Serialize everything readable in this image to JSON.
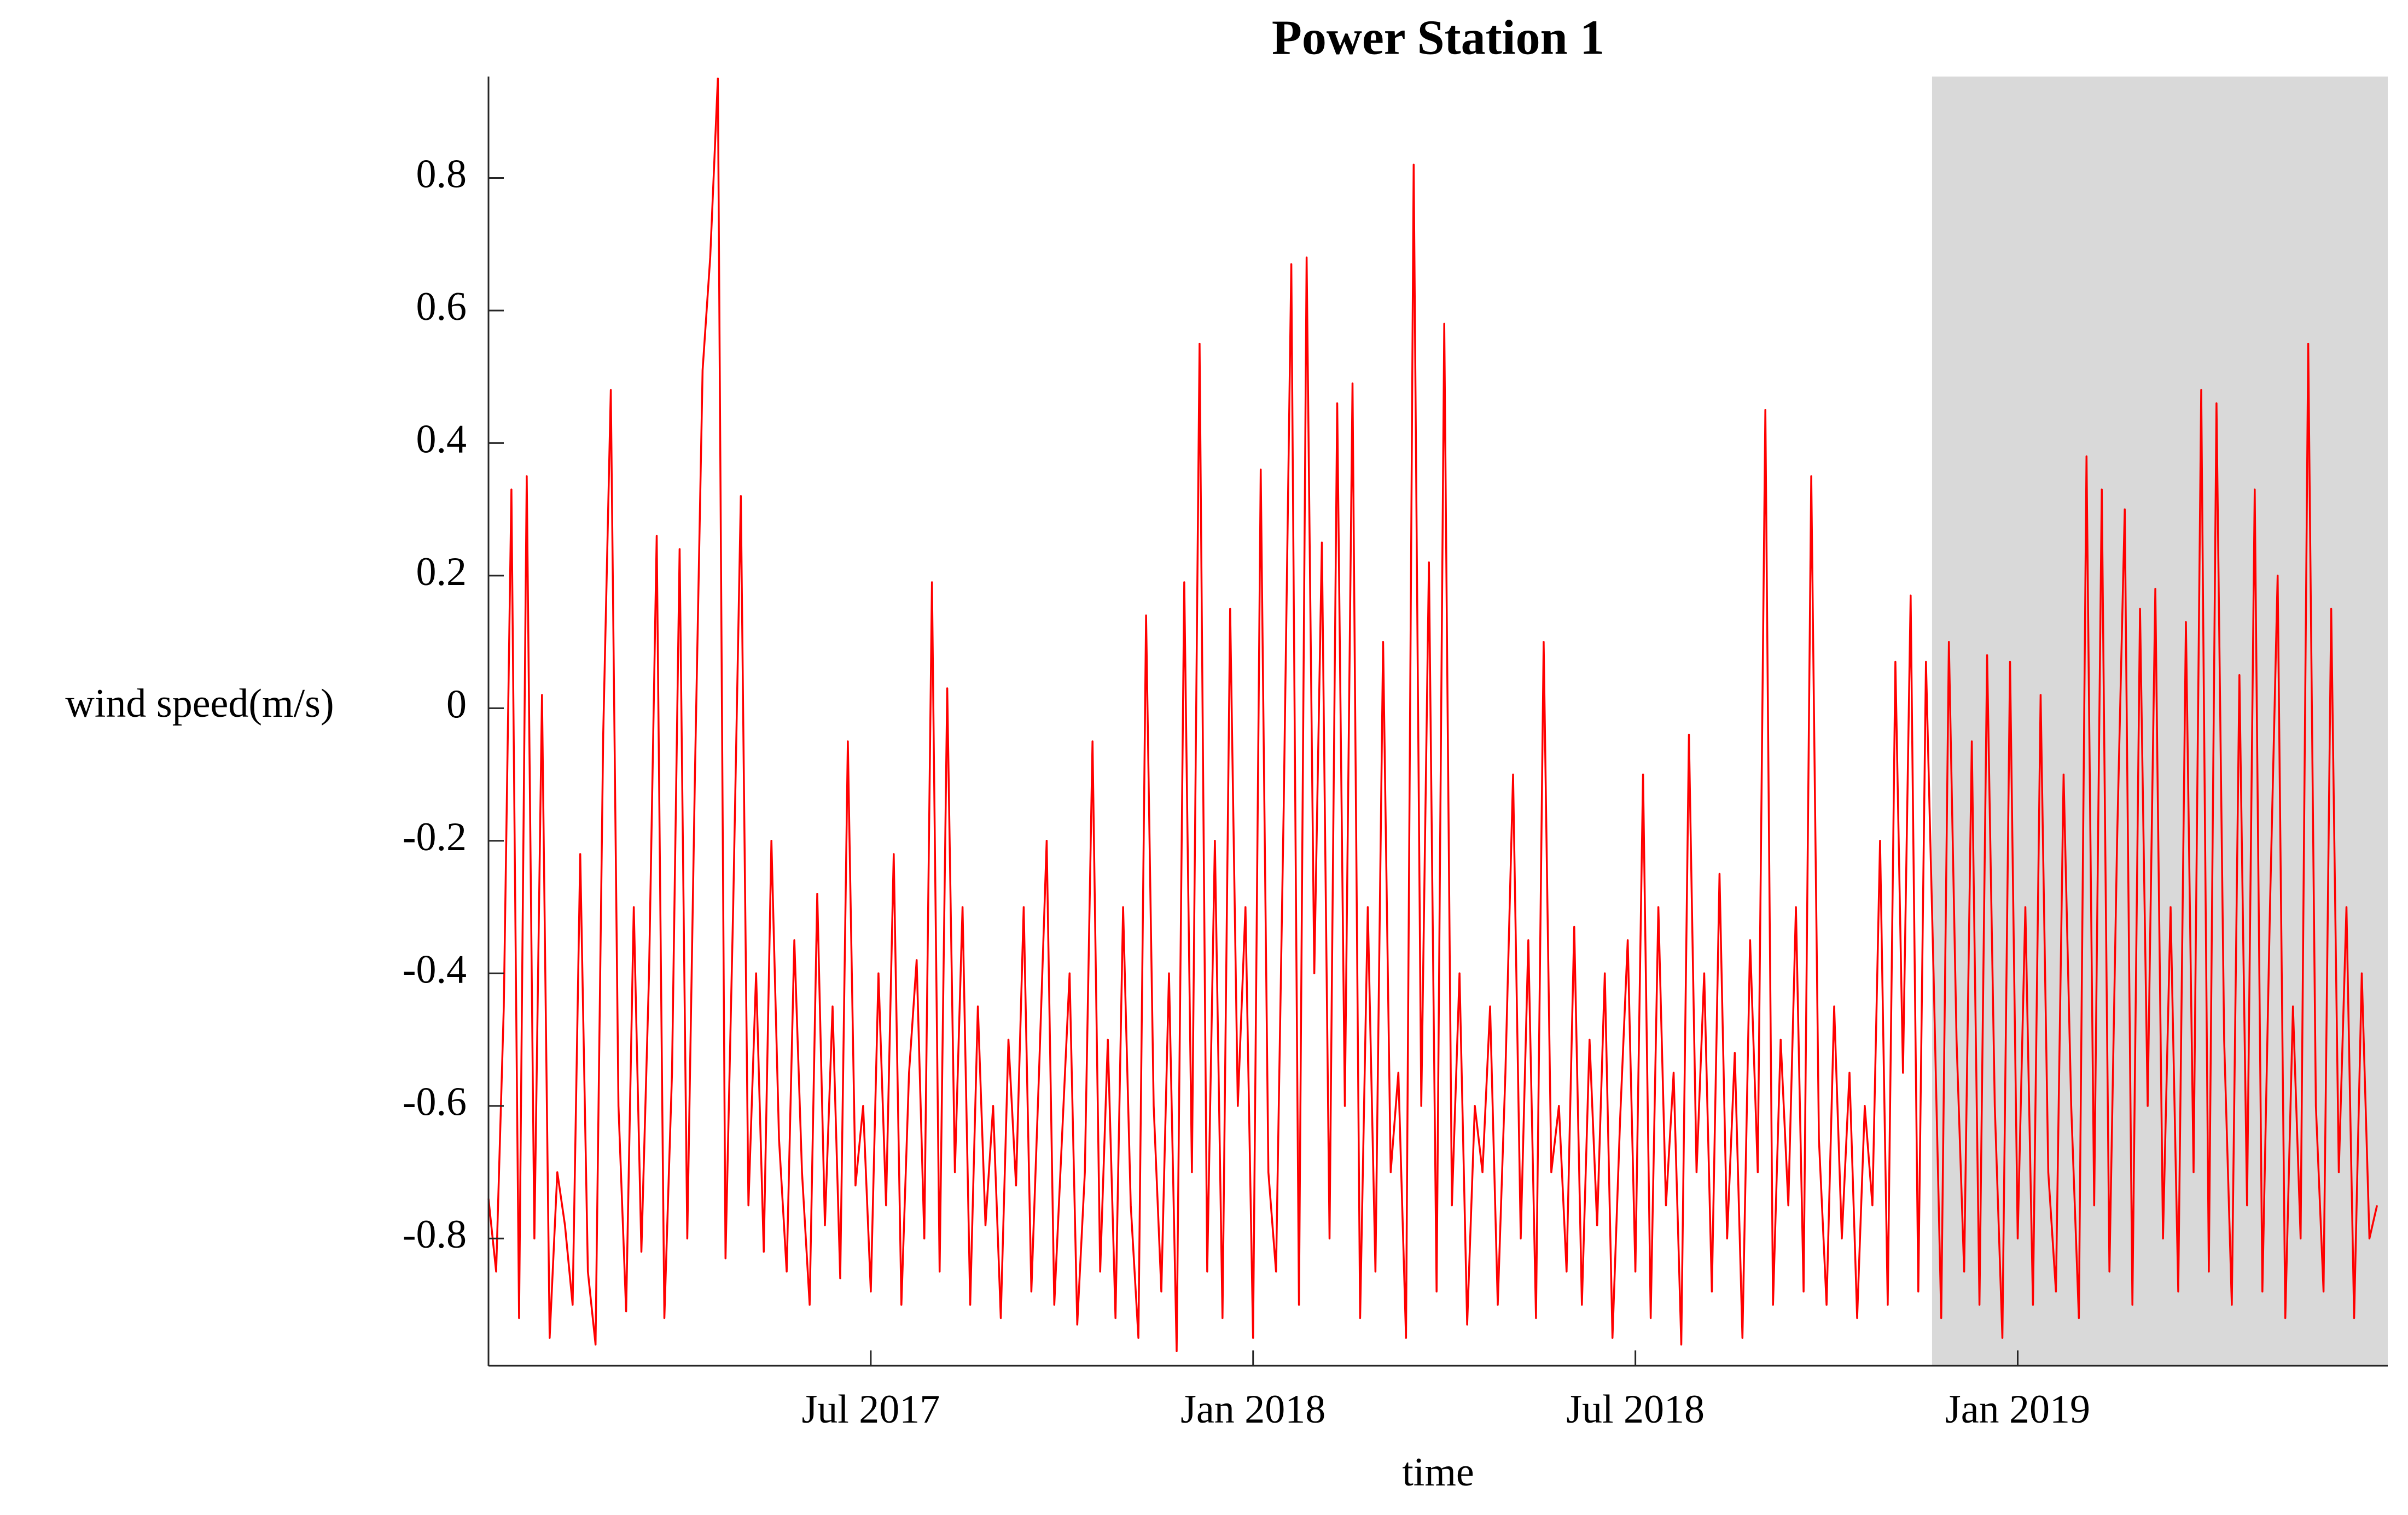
{
  "chart_data": {
    "type": "line",
    "title": "Power Station 1",
    "xlabel": "time",
    "ylabel": "wind speed(m/s)",
    "color": "#ff0000",
    "shaded_region": {
      "xlim": [
        2018.888,
        2019.484
      ],
      "color": "#d9d9d9"
    },
    "xlim": [
      2017.0,
      2019.484
    ],
    "ylim": [
      -0.992,
      0.953
    ],
    "xticks": [
      {
        "value": 2017.5,
        "label": "Jul 2017"
      },
      {
        "value": 2018.0,
        "label": "Jan 2018"
      },
      {
        "value": 2018.5,
        "label": "Jul 2018"
      },
      {
        "value": 2019.0,
        "label": "Jan 2019"
      }
    ],
    "yticks": [
      -0.8,
      -0.6,
      -0.4,
      -0.2,
      0,
      0.2,
      0.4,
      0.6,
      0.8
    ],
    "x": [
      2017.0,
      2017.01,
      2017.02,
      2017.03,
      2017.04,
      2017.05,
      2017.06,
      2017.07,
      2017.08,
      2017.09,
      2017.1,
      2017.11,
      2017.12,
      2017.13,
      2017.14,
      2017.15,
      2017.16,
      2017.17,
      2017.18,
      2017.19,
      2017.2,
      2017.21,
      2017.22,
      2017.23,
      2017.24,
      2017.25,
      2017.26,
      2017.27,
      2017.28,
      2017.29,
      2017.3,
      2017.31,
      2017.32,
      2017.33,
      2017.34,
      2017.35,
      2017.36,
      2017.37,
      2017.38,
      2017.39,
      2017.4,
      2017.41,
      2017.42,
      2017.43,
      2017.44,
      2017.45,
      2017.46,
      2017.47,
      2017.48,
      2017.49,
      2017.5,
      2017.51,
      2017.52,
      2017.53,
      2017.54,
      2017.55,
      2017.56,
      2017.57,
      2017.58,
      2017.59,
      2017.6,
      2017.61,
      2017.62,
      2017.63,
      2017.64,
      2017.65,
      2017.66,
      2017.67,
      2017.68,
      2017.69,
      2017.7,
      2017.71,
      2017.72,
      2017.73,
      2017.74,
      2017.75,
      2017.76,
      2017.77,
      2017.78,
      2017.79,
      2017.8,
      2017.81,
      2017.82,
      2017.83,
      2017.84,
      2017.85,
      2017.86,
      2017.87,
      2017.88,
      2017.89,
      2017.9,
      2017.91,
      2017.92,
      2017.93,
      2017.94,
      2017.95,
      2017.96,
      2017.97,
      2017.98,
      2017.99,
      2018.0,
      2018.01,
      2018.02,
      2018.03,
      2018.04,
      2018.05,
      2018.06,
      2018.07,
      2018.08,
      2018.09,
      2018.1,
      2018.11,
      2018.12,
      2018.13,
      2018.14,
      2018.15,
      2018.16,
      2018.17,
      2018.18,
      2018.19,
      2018.2,
      2018.21,
      2018.22,
      2018.23,
      2018.24,
      2018.25,
      2018.26,
      2018.27,
      2018.28,
      2018.29,
      2018.3,
      2018.31,
      2018.32,
      2018.33,
      2018.34,
      2018.35,
      2018.36,
      2018.37,
      2018.38,
      2018.39,
      2018.4,
      2018.41,
      2018.42,
      2018.43,
      2018.44,
      2018.45,
      2018.46,
      2018.47,
      2018.48,
      2018.49,
      2018.5,
      2018.51,
      2018.52,
      2018.53,
      2018.54,
      2018.55,
      2018.56,
      2018.57,
      2018.58,
      2018.59,
      2018.6,
      2018.61,
      2018.62,
      2018.63,
      2018.64,
      2018.65,
      2018.66,
      2018.67,
      2018.68,
      2018.69,
      2018.7,
      2018.71,
      2018.72,
      2018.73,
      2018.74,
      2018.75,
      2018.76,
      2018.77,
      2018.78,
      2018.79,
      2018.8,
      2018.81,
      2018.82,
      2018.83,
      2018.84,
      2018.85,
      2018.86,
      2018.87,
      2018.88,
      2018.89,
      2018.9,
      2018.91,
      2018.92,
      2018.93,
      2018.94,
      2018.95,
      2018.96,
      2018.97,
      2018.98,
      2018.99,
      2019.0,
      2019.01,
      2019.02,
      2019.03,
      2019.04,
      2019.05,
      2019.06,
      2019.07,
      2019.08,
      2019.09,
      2019.1,
      2019.11,
      2019.12,
      2019.13,
      2019.14,
      2019.15,
      2019.16,
      2019.17,
      2019.18,
      2019.19,
      2019.2,
      2019.21,
      2019.22,
      2019.23,
      2019.24,
      2019.25,
      2019.26,
      2019.27,
      2019.28,
      2019.29,
      2019.3,
      2019.31,
      2019.32,
      2019.33,
      2019.34,
      2019.35,
      2019.36,
      2019.37,
      2019.38,
      2019.39,
      2019.4,
      2019.41,
      2019.42,
      2019.43,
      2019.44,
      2019.45,
      2019.46,
      2019.47
    ],
    "values": [
      -0.74,
      -0.85,
      -0.45,
      0.33,
      -0.92,
      0.35,
      -0.8,
      0.02,
      -0.95,
      -0.7,
      -0.78,
      -0.9,
      -0.22,
      -0.85,
      -0.96,
      -0.04,
      0.48,
      -0.6,
      -0.91,
      -0.3,
      -0.82,
      -0.4,
      0.26,
      -0.92,
      -0.55,
      0.24,
      -0.8,
      -0.1,
      0.51,
      0.68,
      0.95,
      -0.83,
      -0.3,
      0.32,
      -0.75,
      -0.4,
      -0.82,
      -0.2,
      -0.65,
      -0.85,
      -0.35,
      -0.7,
      -0.9,
      -0.28,
      -0.78,
      -0.45,
      -0.86,
      -0.05,
      -0.72,
      -0.6,
      -0.88,
      -0.4,
      -0.75,
      -0.22,
      -0.9,
      -0.55,
      -0.38,
      -0.8,
      0.19,
      -0.85,
      0.03,
      -0.7,
      -0.3,
      -0.9,
      -0.45,
      -0.78,
      -0.6,
      -0.92,
      -0.5,
      -0.72,
      -0.3,
      -0.88,
      -0.55,
      -0.2,
      -0.9,
      -0.65,
      -0.4,
      -0.93,
      -0.7,
      -0.05,
      -0.85,
      -0.5,
      -0.92,
      -0.3,
      -0.75,
      -0.95,
      0.14,
      -0.6,
      -0.88,
      -0.4,
      -0.97,
      0.19,
      -0.7,
      0.55,
      -0.85,
      -0.2,
      -0.92,
      0.15,
      -0.6,
      -0.3,
      -0.95,
      0.36,
      -0.7,
      -0.85,
      -0.15,
      0.67,
      -0.9,
      0.68,
      -0.4,
      0.25,
      -0.8,
      0.46,
      -0.6,
      0.49,
      -0.92,
      -0.3,
      -0.85,
      0.1,
      -0.7,
      -0.55,
      -0.95,
      0.82,
      -0.6,
      0.22,
      -0.88,
      0.58,
      -0.75,
      -0.4,
      -0.93,
      -0.6,
      -0.7,
      -0.45,
      -0.9,
      -0.55,
      -0.1,
      -0.8,
      -0.35,
      -0.92,
      0.1,
      -0.7,
      -0.6,
      -0.85,
      -0.33,
      -0.9,
      -0.5,
      -0.78,
      -0.4,
      -0.95,
      -0.62,
      -0.35,
      -0.85,
      -0.1,
      -0.92,
      -0.3,
      -0.75,
      -0.55,
      -0.96,
      -0.04,
      -0.7,
      -0.4,
      -0.88,
      -0.25,
      -0.8,
      -0.52,
      -0.95,
      -0.35,
      -0.7,
      0.45,
      -0.9,
      -0.5,
      -0.75,
      -0.3,
      -0.88,
      0.35,
      -0.65,
      -0.9,
      -0.45,
      -0.8,
      -0.55,
      -0.92,
      -0.6,
      -0.75,
      -0.2,
      -0.9,
      0.07,
      -0.55,
      0.17,
      -0.88,
      0.07,
      -0.4,
      -0.92,
      0.1,
      -0.5,
      -0.85,
      -0.05,
      -0.9,
      0.08,
      -0.6,
      -0.95,
      0.07,
      -0.8,
      -0.3,
      -0.9,
      0.02,
      -0.7,
      -0.88,
      -0.1,
      -0.6,
      -0.92,
      0.38,
      -0.75,
      0.33,
      -0.85,
      -0.2,
      0.3,
      -0.9,
      0.15,
      -0.6,
      0.18,
      -0.8,
      -0.3,
      -0.88,
      0.13,
      -0.7,
      0.48,
      -0.85,
      0.46,
      -0.5,
      -0.9,
      0.05,
      -0.75,
      0.33,
      -0.88,
      -0.3,
      0.2,
      -0.92,
      -0.45,
      -0.8,
      0.55,
      -0.6,
      -0.88,
      0.15,
      -0.7,
      -0.3,
      -0.92,
      -0.4,
      -0.8,
      -0.75
    ]
  }
}
